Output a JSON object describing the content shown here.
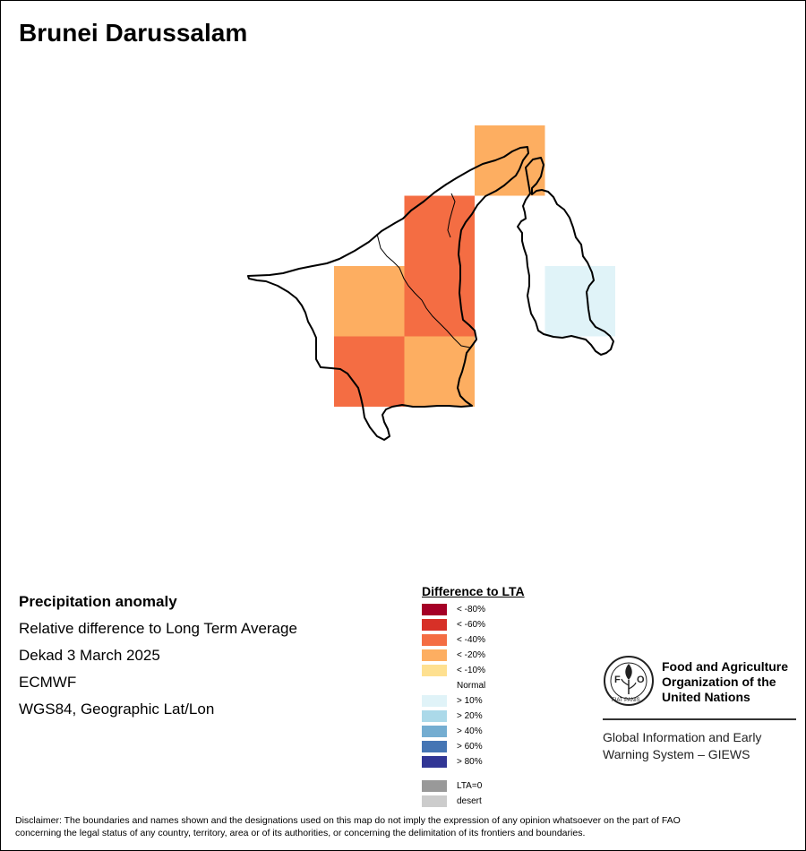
{
  "title": "Brunei Darussalam",
  "map": {
    "cells": [
      {
        "lat_row": 1,
        "lon_col": 3,
        "category": "< -20%",
        "color": "#fdae61"
      },
      {
        "lat_row": 2,
        "lon_col": 2,
        "category": "< -40%",
        "color": "#f46d43"
      },
      {
        "lat_row": 3,
        "lon_col": 2,
        "category": "< -40%",
        "color": "#f46d43"
      },
      {
        "lat_row": 3,
        "lon_col": 4,
        "category": "> 10%",
        "color": "#e0f3f8"
      },
      {
        "lat_row": 3,
        "lon_col": 1,
        "category": "< -20%",
        "color": "#fdae61"
      },
      {
        "lat_row": 4,
        "lon_col": 1,
        "category": "< -40%",
        "color": "#f46d43"
      },
      {
        "lat_row": 4,
        "lon_col": 2,
        "category": "< -20%",
        "color": "#fdae61"
      }
    ]
  },
  "info": {
    "heading": "Precipitation anomaly",
    "line1": "Relative difference to Long Term Average",
    "line2": "Dekad 3 March 2025",
    "line3": "ECMWF",
    "line4": "WGS84, Geographic Lat/Lon"
  },
  "legend": {
    "title": "Difference to LTA",
    "items": [
      {
        "label": "< -80%",
        "color": "#a50026"
      },
      {
        "label": "< -60%",
        "color": "#d73027"
      },
      {
        "label": "< -40%",
        "color": "#f46d43"
      },
      {
        "label": "< -20%",
        "color": "#fdae61"
      },
      {
        "label": "< -10%",
        "color": "#fee090"
      },
      {
        "label": "Normal",
        "color": "#ffffff"
      },
      {
        "label": "> 10%",
        "color": "#e0f3f8"
      },
      {
        "label": "> 20%",
        "color": "#abd9e9"
      },
      {
        "label": "> 40%",
        "color": "#74add1"
      },
      {
        "label": "> 60%",
        "color": "#4575b4"
      },
      {
        "label": "> 80%",
        "color": "#313695"
      }
    ],
    "extra": [
      {
        "label": "LTA=0",
        "color": "#999999"
      },
      {
        "label": "desert",
        "color": "#cccccc"
      }
    ]
  },
  "fao": {
    "name_line1": "Food and Agriculture",
    "name_line2": "Organization of the",
    "name_line3": "United Nations",
    "emblem_text": "FAO",
    "motto": "FIAT PANIS",
    "giews_line1": "Global Information and Early",
    "giews_line2": "Warning System – GIEWS"
  },
  "disclaimer": {
    "line1": "Disclaimer: The boundaries and names shown and the designations used on this map do not imply the expression of any opinion whatsoever on the part of FAO",
    "line2": "concerning the legal status of any country, territory, area or of its authorities, or concerning the delimitation of its frontiers and boundaries."
  }
}
